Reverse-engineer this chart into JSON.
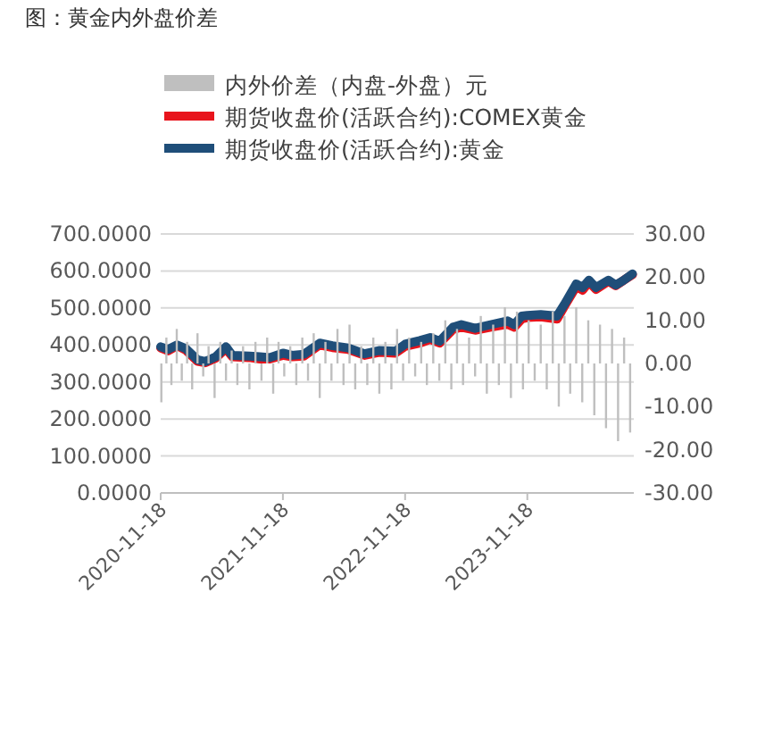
{
  "chart_data": {
    "type": "line",
    "title": "图：黄金内外盘价差",
    "xlim": [
      "2020-11-18",
      "2024-10-01"
    ],
    "xticks": [
      "2020-11-18",
      "2021-11-18",
      "2022-11-18",
      "2023-11-18"
    ],
    "ylim": [
      0,
      700
    ],
    "yticks": [
      {
        "value": 0,
        "label": "0.0000"
      },
      {
        "value": 100,
        "label": "100.0000"
      },
      {
        "value": 200,
        "label": "200.0000"
      },
      {
        "value": 300,
        "label": "300.0000"
      },
      {
        "value": 400,
        "label": "400.0000"
      },
      {
        "value": 500,
        "label": "500.0000"
      },
      {
        "value": 600,
        "label": "600.0000"
      },
      {
        "value": 700,
        "label": "700.0000"
      }
    ],
    "y2lim": [
      -30,
      30
    ],
    "y2ticks": [
      {
        "value": -30,
        "label": "-30.00"
      },
      {
        "value": -20,
        "label": "-20.00"
      },
      {
        "value": -10,
        "label": "-10.00"
      },
      {
        "value": 0,
        "label": "0.00"
      },
      {
        "value": 10,
        "label": "10.00"
      },
      {
        "value": 20,
        "label": "20.00"
      },
      {
        "value": 30,
        "label": "30.00"
      }
    ],
    "grid": "y",
    "legend": "top",
    "series": [
      {
        "name": "内外价差（内盘-外盘）元",
        "type": "bar",
        "axis": "y2",
        "color": "#bfbfbf",
        "x": [
          "2020-11-20",
          "2020-12-05",
          "2020-12-20",
          "2021-01-05",
          "2021-01-20",
          "2021-02-05",
          "2021-02-20",
          "2021-03-08",
          "2021-03-25",
          "2021-04-10",
          "2021-04-28",
          "2021-05-15",
          "2021-06-01",
          "2021-06-18",
          "2021-07-05",
          "2021-07-22",
          "2021-08-10",
          "2021-08-28",
          "2021-09-15",
          "2021-10-02",
          "2021-10-20",
          "2021-11-05",
          "2021-11-22",
          "2021-12-10",
          "2021-12-28",
          "2022-01-15",
          "2022-02-01",
          "2022-02-18",
          "2022-03-08",
          "2022-03-25",
          "2022-04-12",
          "2022-04-30",
          "2022-05-18",
          "2022-06-05",
          "2022-06-22",
          "2022-07-10",
          "2022-07-28",
          "2022-08-15",
          "2022-09-02",
          "2022-09-20",
          "2022-10-08",
          "2022-10-25",
          "2022-11-12",
          "2022-11-30",
          "2022-12-18",
          "2023-01-05",
          "2023-01-22",
          "2023-02-10",
          "2023-02-28",
          "2023-03-18",
          "2023-04-05",
          "2023-04-22",
          "2023-05-10",
          "2023-05-28",
          "2023-06-15",
          "2023-07-02",
          "2023-07-20",
          "2023-08-08",
          "2023-08-25",
          "2023-09-12",
          "2023-09-30",
          "2023-10-18",
          "2023-11-05",
          "2023-11-22",
          "2023-12-10",
          "2023-12-28",
          "2024-01-15",
          "2024-02-02",
          "2024-02-20",
          "2024-03-08",
          "2024-03-25",
          "2024-04-12",
          "2024-04-30",
          "2024-05-18",
          "2024-06-05",
          "2024-06-22",
          "2024-07-10",
          "2024-07-28",
          "2024-08-15",
          "2024-09-02",
          "2024-09-20"
        ],
        "values": [
          -9,
          6,
          -5,
          8,
          -4,
          5,
          -6,
          7,
          -3,
          4,
          -8,
          5,
          -4,
          3,
          -5,
          4,
          -6,
          5,
          -4,
          6,
          -7,
          5,
          -3,
          4,
          -5,
          6,
          -4,
          7,
          -8,
          5,
          -4,
          8,
          -5,
          9,
          -6,
          4,
          -5,
          6,
          -7,
          5,
          -6,
          8,
          -4,
          6,
          -3,
          5,
          -5,
          7,
          -4,
          10,
          -6,
          8,
          -5,
          6,
          -3,
          11,
          -7,
          9,
          -5,
          13,
          -8,
          12,
          -6,
          10,
          -4,
          9,
          -6,
          12,
          -10,
          11,
          -7,
          13,
          -9,
          10,
          -12,
          9,
          -15,
          8,
          -18,
          6,
          -16
        ]
      },
      {
        "name": "期货收盘价(活跃合约):COMEX黄金",
        "axis": "y",
        "color": "#e8141c",
        "x": [
          "2020-11-18",
          "2020-12-10",
          "2021-01-06",
          "2021-02-01",
          "2021-03-08",
          "2021-03-31",
          "2021-05-01",
          "2021-06-01",
          "2021-06-20",
          "2021-08-10",
          "2021-09-10",
          "2021-10-10",
          "2021-11-18",
          "2021-12-15",
          "2022-01-20",
          "2022-03-08",
          "2022-04-15",
          "2022-06-01",
          "2022-07-20",
          "2022-09-01",
          "2022-10-20",
          "2022-11-18",
          "2023-01-01",
          "2023-02-01",
          "2023-03-01",
          "2023-04-10",
          "2023-05-05",
          "2023-06-15",
          "2023-08-01",
          "2023-09-20",
          "2023-10-10",
          "2023-11-01",
          "2023-11-18",
          "2023-12-28",
          "2024-02-15",
          "2024-03-08",
          "2024-04-12",
          "2024-05-01",
          "2024-05-20",
          "2024-06-10",
          "2024-07-17",
          "2024-08-08",
          "2024-09-01",
          "2024-09-27"
        ],
        "values": [
          392,
          384,
          398,
          386,
          356,
          352,
          364,
          390,
          368,
          366,
          362,
          362,
          372,
          368,
          370,
          400,
          393,
          388,
          372,
          380,
          378,
          396,
          405,
          415,
          405,
          442,
          448,
          440,
          448,
          456,
          448,
          470,
          474,
          476,
          470,
          505,
          558,
          548,
          570,
          550,
          572,
          560,
          575,
          590
        ]
      },
      {
        "name": "期货收盘价(活跃合约):黄金",
        "axis": "y",
        "color": "#1f4e79",
        "x": [
          "2020-11-18",
          "2020-12-10",
          "2021-01-06",
          "2021-02-01",
          "2021-03-08",
          "2021-03-31",
          "2021-05-01",
          "2021-06-01",
          "2021-06-20",
          "2021-08-10",
          "2021-09-10",
          "2021-10-10",
          "2021-11-18",
          "2021-12-15",
          "2022-01-20",
          "2022-03-08",
          "2022-04-15",
          "2022-06-01",
          "2022-07-20",
          "2022-09-01",
          "2022-10-20",
          "2022-11-18",
          "2023-01-01",
          "2023-02-01",
          "2023-03-01",
          "2023-04-10",
          "2023-05-05",
          "2023-06-15",
          "2023-08-01",
          "2023-09-20",
          "2023-10-10",
          "2023-11-01",
          "2023-11-18",
          "2023-12-28",
          "2024-02-15",
          "2024-03-08",
          "2024-04-12",
          "2024-05-01",
          "2024-05-20",
          "2024-06-10",
          "2024-07-17",
          "2024-08-08",
          "2024-09-01",
          "2024-09-27"
        ],
        "values": [
          395,
          388,
          400,
          390,
          360,
          355,
          368,
          395,
          372,
          370,
          368,
          366,
          378,
          372,
          375,
          405,
          398,
          392,
          376,
          385,
          383,
          402,
          412,
          420,
          410,
          448,
          455,
          445,
          455,
          465,
          455,
          478,
          480,
          482,
          478,
          510,
          565,
          555,
          575,
          555,
          575,
          562,
          575,
          592
        ]
      }
    ]
  }
}
